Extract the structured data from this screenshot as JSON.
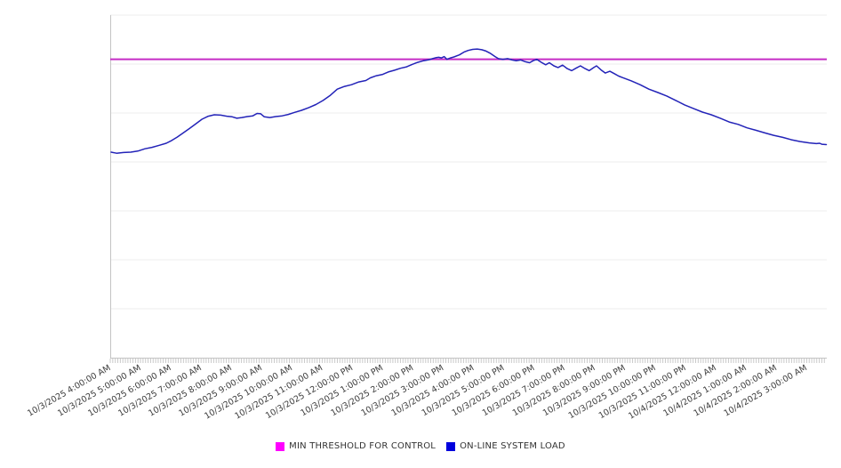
{
  "chart_data": {
    "type": "line",
    "title": "",
    "xlabel": "",
    "ylabel": "",
    "y_axis_labels_visible": false,
    "ylim": [
      0,
      100
    ],
    "grid": "horizontal-only",
    "gridline_count": 8,
    "legend_position": "bottom-center",
    "x_labels": [
      "10/3/2025 4:00:00 AM",
      "10/3/2025 5:00:00 AM",
      "10/3/2025 6:00:00 AM",
      "10/3/2025 7:00:00 AM",
      "10/3/2025 8:00:00 AM",
      "10/3/2025 9:00:00 AM",
      "10/3/2025 10:00:00 AM",
      "10/3/2025 11:00:00 AM",
      "10/3/2025 12:00:00 PM",
      "10/3/2025 1:00:00 PM",
      "10/3/2025 2:00:00 PM",
      "10/3/2025 3:00:00 PM",
      "10/3/2025 4:00:00 PM",
      "10/3/2025 5:00:00 PM",
      "10/3/2025 6:00:00 PM",
      "10/3/2025 7:00:00 PM",
      "10/3/2025 8:00:00 PM",
      "10/3/2025 9:00:00 PM",
      "10/3/2025 10:00:00 PM",
      "10/3/2025 11:00:00 PM",
      "10/4/2025 12:00:00 AM",
      "10/4/2025 1:00:00 AM",
      "10/4/2025 2:00:00 AM",
      "10/4/2025 3:00:00 AM"
    ],
    "series": [
      {
        "name": "MIN THRESHOLD FOR CONTROL",
        "type": "threshold-line",
        "value": 87.1,
        "line_color": "#c52cc5",
        "legend_color": "#ff00ff"
      },
      {
        "name": "ON-LINE SYSTEM LOAD",
        "type": "line",
        "line_color": "#2323b8",
        "legend_color": "#0000dd",
        "x_unit": "hours since 10/3/2025 4:00:00 AM",
        "y_unit": "percent of plot scale (axis unlabeled)",
        "points": [
          [
            0,
            60.0
          ],
          [
            0.18,
            59.7
          ],
          [
            0.41,
            59.9
          ],
          [
            0.65,
            60.0
          ],
          [
            0.88,
            60.3
          ],
          [
            1.12,
            61.0
          ],
          [
            1.35,
            61.4
          ],
          [
            1.59,
            62.0
          ],
          [
            1.82,
            62.6
          ],
          [
            2.0,
            63.4
          ],
          [
            2.18,
            64.4
          ],
          [
            2.38,
            65.6
          ],
          [
            2.59,
            66.9
          ],
          [
            2.79,
            68.2
          ],
          [
            3.0,
            69.6
          ],
          [
            3.21,
            70.5
          ],
          [
            3.41,
            70.9
          ],
          [
            3.62,
            70.8
          ],
          [
            3.82,
            70.5
          ],
          [
            4.0,
            70.3
          ],
          [
            4.15,
            69.9
          ],
          [
            4.32,
            70.1
          ],
          [
            4.5,
            70.4
          ],
          [
            4.68,
            70.6
          ],
          [
            4.82,
            71.3
          ],
          [
            4.94,
            71.2
          ],
          [
            5.06,
            70.3
          ],
          [
            5.24,
            70.1
          ],
          [
            5.44,
            70.4
          ],
          [
            5.65,
            70.6
          ],
          [
            5.85,
            71.0
          ],
          [
            6.06,
            71.6
          ],
          [
            6.29,
            72.2
          ],
          [
            6.53,
            73.0
          ],
          [
            6.76,
            73.9
          ],
          [
            7.0,
            75.1
          ],
          [
            7.24,
            76.6
          ],
          [
            7.47,
            78.4
          ],
          [
            7.71,
            79.2
          ],
          [
            7.94,
            79.7
          ],
          [
            8.18,
            80.5
          ],
          [
            8.41,
            80.9
          ],
          [
            8.56,
            81.7
          ],
          [
            8.76,
            82.3
          ],
          [
            8.97,
            82.7
          ],
          [
            9.15,
            83.4
          ],
          [
            9.35,
            83.9
          ],
          [
            9.56,
            84.5
          ],
          [
            9.76,
            84.9
          ],
          [
            9.94,
            85.6
          ],
          [
            10.12,
            86.2
          ],
          [
            10.32,
            86.7
          ],
          [
            10.5,
            87.0
          ],
          [
            10.62,
            87.3
          ],
          [
            10.74,
            87.6
          ],
          [
            10.82,
            87.7
          ],
          [
            10.91,
            87.5
          ],
          [
            11.0,
            87.9
          ],
          [
            11.09,
            87.1
          ],
          [
            11.21,
            87.5
          ],
          [
            11.32,
            87.8
          ],
          [
            11.5,
            88.4
          ],
          [
            11.65,
            89.2
          ],
          [
            11.79,
            89.7
          ],
          [
            11.94,
            90.0
          ],
          [
            12.09,
            90.1
          ],
          [
            12.24,
            89.9
          ],
          [
            12.38,
            89.5
          ],
          [
            12.53,
            88.8
          ],
          [
            12.68,
            87.9
          ],
          [
            12.79,
            87.3
          ],
          [
            12.94,
            87.1
          ],
          [
            13.09,
            87.3
          ],
          [
            13.24,
            86.9
          ],
          [
            13.38,
            86.7
          ],
          [
            13.53,
            86.9
          ],
          [
            13.68,
            86.4
          ],
          [
            13.82,
            86.1
          ],
          [
            13.94,
            86.7
          ],
          [
            14.06,
            87.1
          ],
          [
            14.21,
            86.2
          ],
          [
            14.35,
            85.5
          ],
          [
            14.47,
            86.1
          ],
          [
            14.62,
            85.2
          ],
          [
            14.76,
            84.7
          ],
          [
            14.91,
            85.4
          ],
          [
            15.06,
            84.4
          ],
          [
            15.21,
            83.8
          ],
          [
            15.35,
            84.5
          ],
          [
            15.5,
            85.2
          ],
          [
            15.65,
            84.4
          ],
          [
            15.79,
            83.8
          ],
          [
            15.94,
            84.7
          ],
          [
            16.03,
            85.2
          ],
          [
            16.18,
            84.0
          ],
          [
            16.32,
            83.1
          ],
          [
            16.47,
            83.6
          ],
          [
            16.62,
            82.9
          ],
          [
            16.76,
            82.2
          ],
          [
            16.88,
            81.8
          ],
          [
            17.18,
            80.8
          ],
          [
            17.47,
            79.7
          ],
          [
            17.76,
            78.4
          ],
          [
            18.06,
            77.4
          ],
          [
            18.35,
            76.4
          ],
          [
            18.65,
            75.1
          ],
          [
            18.94,
            73.8
          ],
          [
            19.24,
            72.7
          ],
          [
            19.53,
            71.7
          ],
          [
            19.82,
            70.9
          ],
          [
            20.12,
            69.9
          ],
          [
            20.41,
            68.8
          ],
          [
            20.71,
            68.1
          ],
          [
            21.0,
            67.1
          ],
          [
            21.29,
            66.4
          ],
          [
            21.59,
            65.6
          ],
          [
            21.88,
            64.9
          ],
          [
            22.18,
            64.3
          ],
          [
            22.47,
            63.6
          ],
          [
            22.76,
            63.1
          ],
          [
            23.06,
            62.7
          ],
          [
            23.29,
            62.5
          ],
          [
            23.4,
            62.6
          ],
          [
            23.47,
            62.3
          ],
          [
            23.62,
            62.2
          ]
        ]
      }
    ],
    "colors": {
      "gridline": "#ececec",
      "axis": "#c4c4c4",
      "minor_tick": "#c9c9c9",
      "tick_label": "#3c3c3c",
      "background": "#ffffff"
    }
  },
  "legend": {
    "items": [
      {
        "label": "MIN THRESHOLD FOR CONTROL",
        "color": "#ff00ff"
      },
      {
        "label": "ON-LINE SYSTEM LOAD",
        "color": "#0000dd"
      }
    ]
  }
}
